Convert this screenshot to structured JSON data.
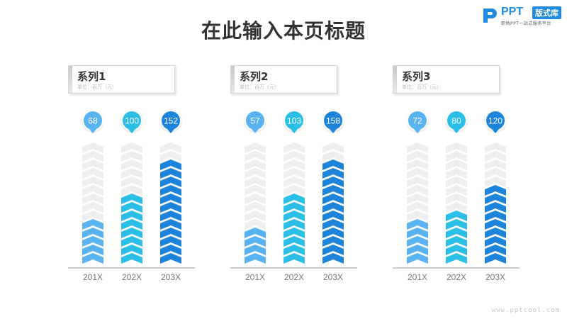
{
  "title": "在此输入本页标题",
  "logo": {
    "mark": "P",
    "text": "PPT",
    "badge": "版式库",
    "subtitle": "职场PPT一站式服务平台"
  },
  "footer_url": "www.pptcool.com",
  "colors": {
    "track": "#eeeeee",
    "axis": "#999999",
    "categories": [
      "#58b3f0",
      "#2bbfe8",
      "#1d84db"
    ]
  },
  "panels": [
    {
      "name": "系列1",
      "unit": "单位：百万（元）"
    },
    {
      "name": "系列2",
      "unit": "单位：百万（元）"
    },
    {
      "name": "系列3",
      "unit": "单位：百万（元）"
    }
  ],
  "chart_data": [
    {
      "type": "bar",
      "title": "系列1",
      "subtitle": "单位：百万（元）",
      "categories": [
        "201X",
        "202X",
        "203X"
      ],
      "values": [
        68,
        100,
        152
      ],
      "ylim": [
        0,
        180
      ]
    },
    {
      "type": "bar",
      "title": "系列2",
      "subtitle": "单位：百万（元）",
      "categories": [
        "201X",
        "202X",
        "203X"
      ],
      "values": [
        57,
        103,
        158
      ],
      "ylim": [
        0,
        180
      ]
    },
    {
      "type": "bar",
      "title": "系列3",
      "subtitle": "单位：百万（元）",
      "categories": [
        "201X",
        "202X",
        "203X"
      ],
      "values": [
        72,
        80,
        120
      ],
      "ylim": [
        0,
        180
      ]
    }
  ]
}
